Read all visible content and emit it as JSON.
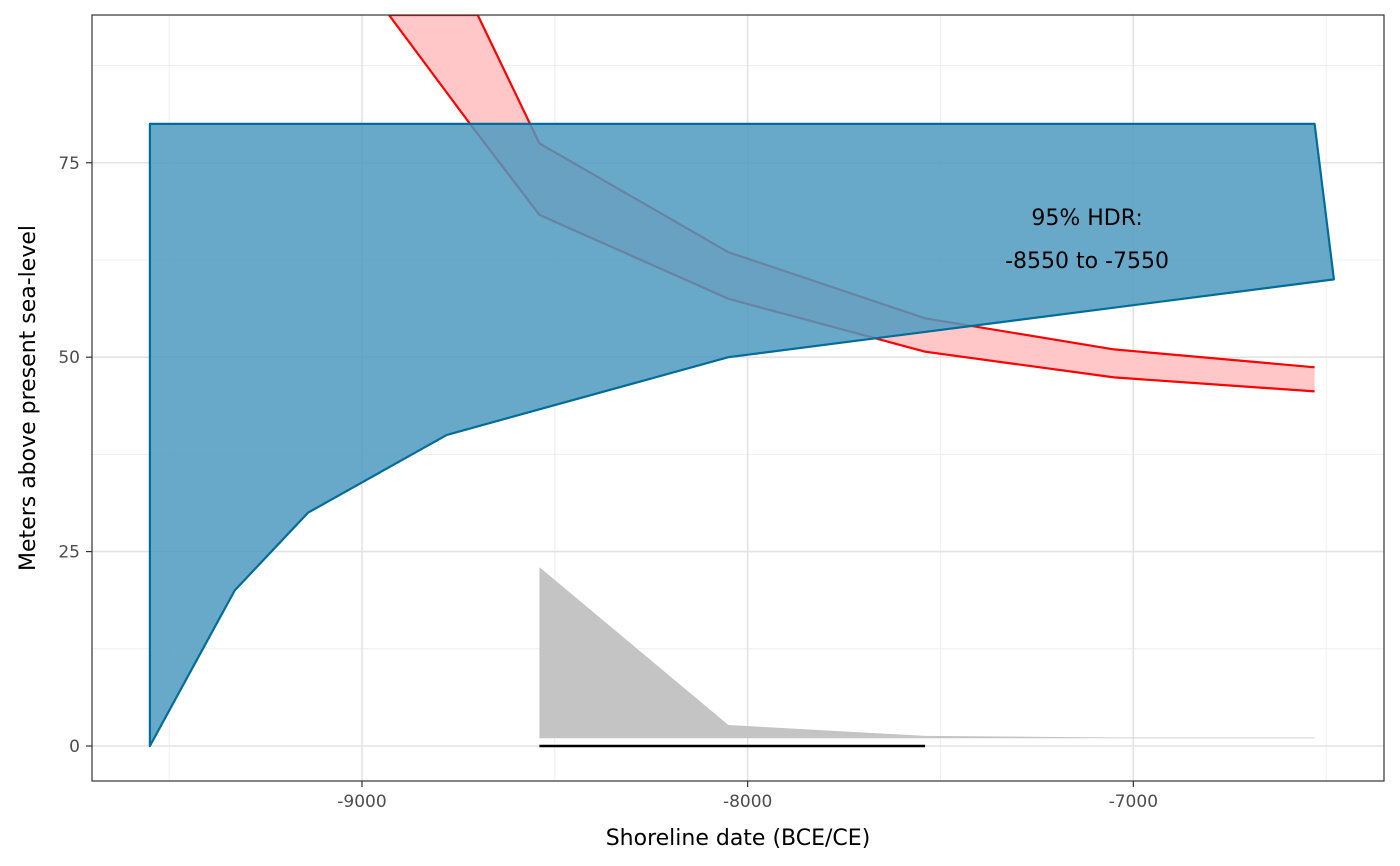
{
  "chart_data": {
    "type": "area",
    "xlabel": "Shoreline date (BCE/CE)",
    "ylabel": "Meters above present sea-level",
    "xlim": [
      -9700,
      -6350
    ],
    "ylim": [
      -4.5,
      94
    ],
    "x_ticks": [
      -9000,
      -8000,
      -7000
    ],
    "y_ticks": [
      0,
      25,
      50,
      75
    ],
    "x_tick_labels": [
      "-9000",
      "-8000",
      "-7000"
    ],
    "y_tick_labels": [
      "0",
      "25",
      "50",
      "75"
    ],
    "grid": true,
    "colors": {
      "blue_fill": "#4d9abf",
      "blue_line": "#006d99",
      "red_fill": "#ffc7c7",
      "red_line": "#ff0000",
      "grey_fill": "#c4c4c4",
      "hdr_line": "#000000"
    },
    "blue_polygon": [
      [
        -9550,
        0
      ],
      [
        -9440,
        10
      ],
      [
        -9330,
        20
      ],
      [
        -9140,
        30
      ],
      [
        -8780,
        40
      ],
      [
        -8050,
        50
      ],
      [
        -6480,
        60
      ],
      [
        -6530,
        80
      ],
      [
        -9550,
        80
      ]
    ],
    "red_band": {
      "upper": [
        [
          -8930,
          94
        ],
        [
          -8700,
          94
        ],
        [
          -8540,
          77.5
        ],
        [
          -8050,
          63.5
        ],
        [
          -7540,
          55
        ],
        [
          -7050,
          51
        ],
        [
          -6530,
          48.7
        ]
      ],
      "lower": [
        [
          -8930,
          94
        ],
        [
          -8720,
          80
        ],
        [
          -8540,
          68.3
        ],
        [
          -8050,
          57.5
        ],
        [
          -7540,
          50.7
        ],
        [
          -7050,
          47.4
        ],
        [
          -6530,
          45.6
        ]
      ]
    },
    "grey_density": {
      "top": [
        [
          -8540,
          23
        ],
        [
          -8050,
          2.7
        ],
        [
          -7540,
          1.3
        ],
        [
          -7050,
          1.1
        ],
        [
          -6530,
          1.1
        ]
      ],
      "base": 1
    },
    "hdr_segment": {
      "start": -8540,
      "end": -7540,
      "y": 0
    },
    "annotation": {
      "line1": "95% HDR:",
      "line2": "-8550 to -7550",
      "x": -7120,
      "y1": 68,
      "y2": 62.5
    }
  }
}
